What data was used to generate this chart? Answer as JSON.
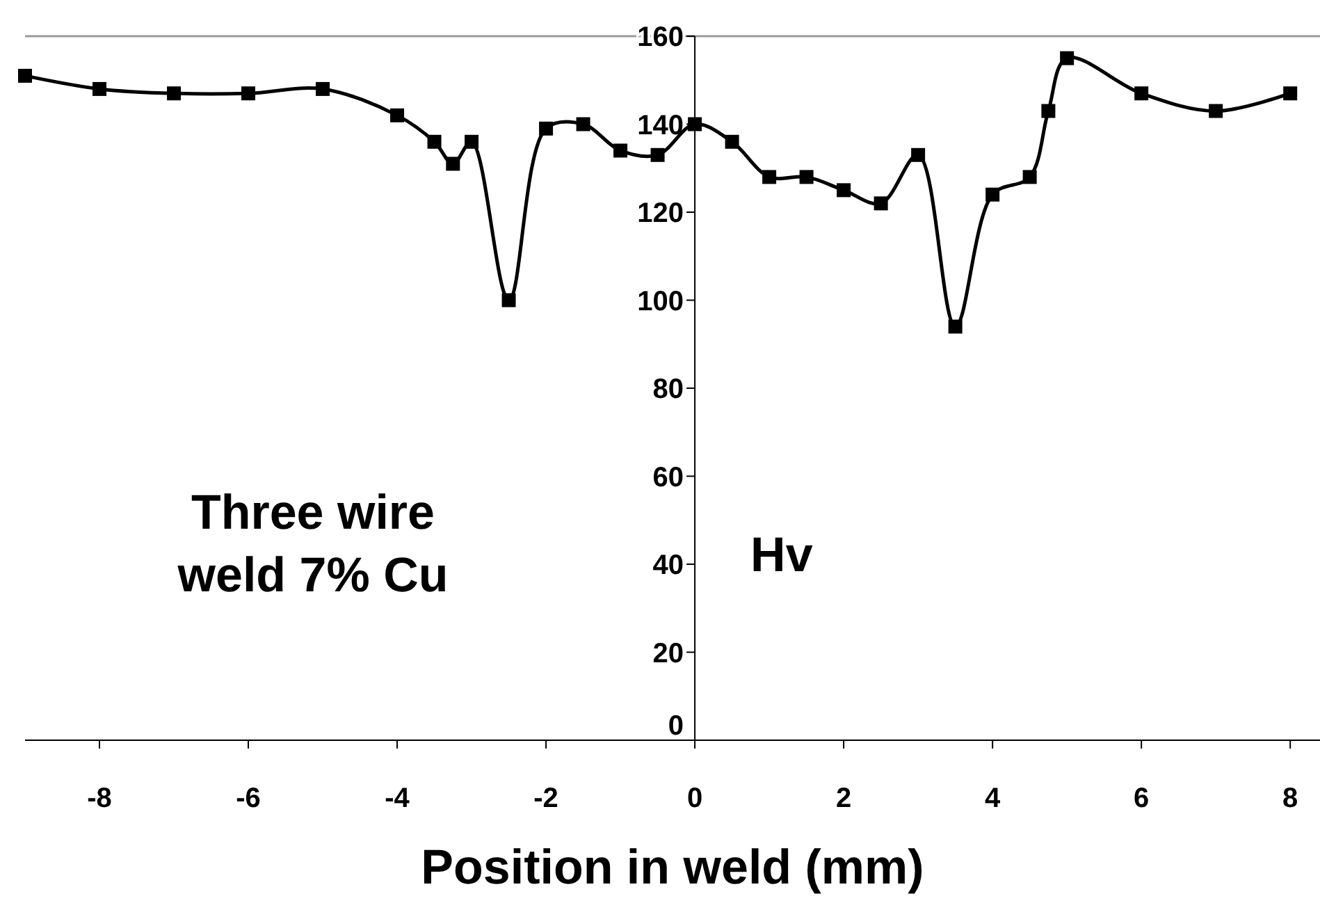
{
  "chart_data": {
    "type": "line",
    "xlabel": "Position in weld (mm)",
    "ylabel": "Hv",
    "annotations": [
      "Three wire weld 7% Cu"
    ],
    "x": [
      -9,
      -8,
      -7,
      -6,
      -5,
      -4,
      -3.5,
      -3.25,
      -3,
      -2.5,
      -2,
      -1.5,
      -1,
      -0.5,
      0,
      0.5,
      1,
      1.5,
      2,
      2.5,
      3,
      3.5,
      4,
      4.5,
      4.75,
      5,
      6,
      7,
      8
    ],
    "series": [
      {
        "color": "#000000",
        "values": [
          151,
          148,
          147,
          147,
          148,
          142,
          136,
          131,
          136,
          100,
          139,
          140,
          134,
          133,
          140,
          136,
          128,
          128,
          125,
          122,
          133,
          94,
          124,
          128,
          143,
          155,
          147,
          143,
          147
        ]
      }
    ],
    "xlim": [
      -9,
      8.4
    ],
    "ylim": [
      0,
      160
    ],
    "xticks": [
      -8,
      -6,
      -4,
      -2,
      0,
      2,
      4,
      6,
      8
    ],
    "yticks": [
      0,
      20,
      40,
      60,
      80,
      100,
      120,
      140,
      160
    ],
    "marker": "square",
    "line_style": "solid",
    "grid": false
  }
}
